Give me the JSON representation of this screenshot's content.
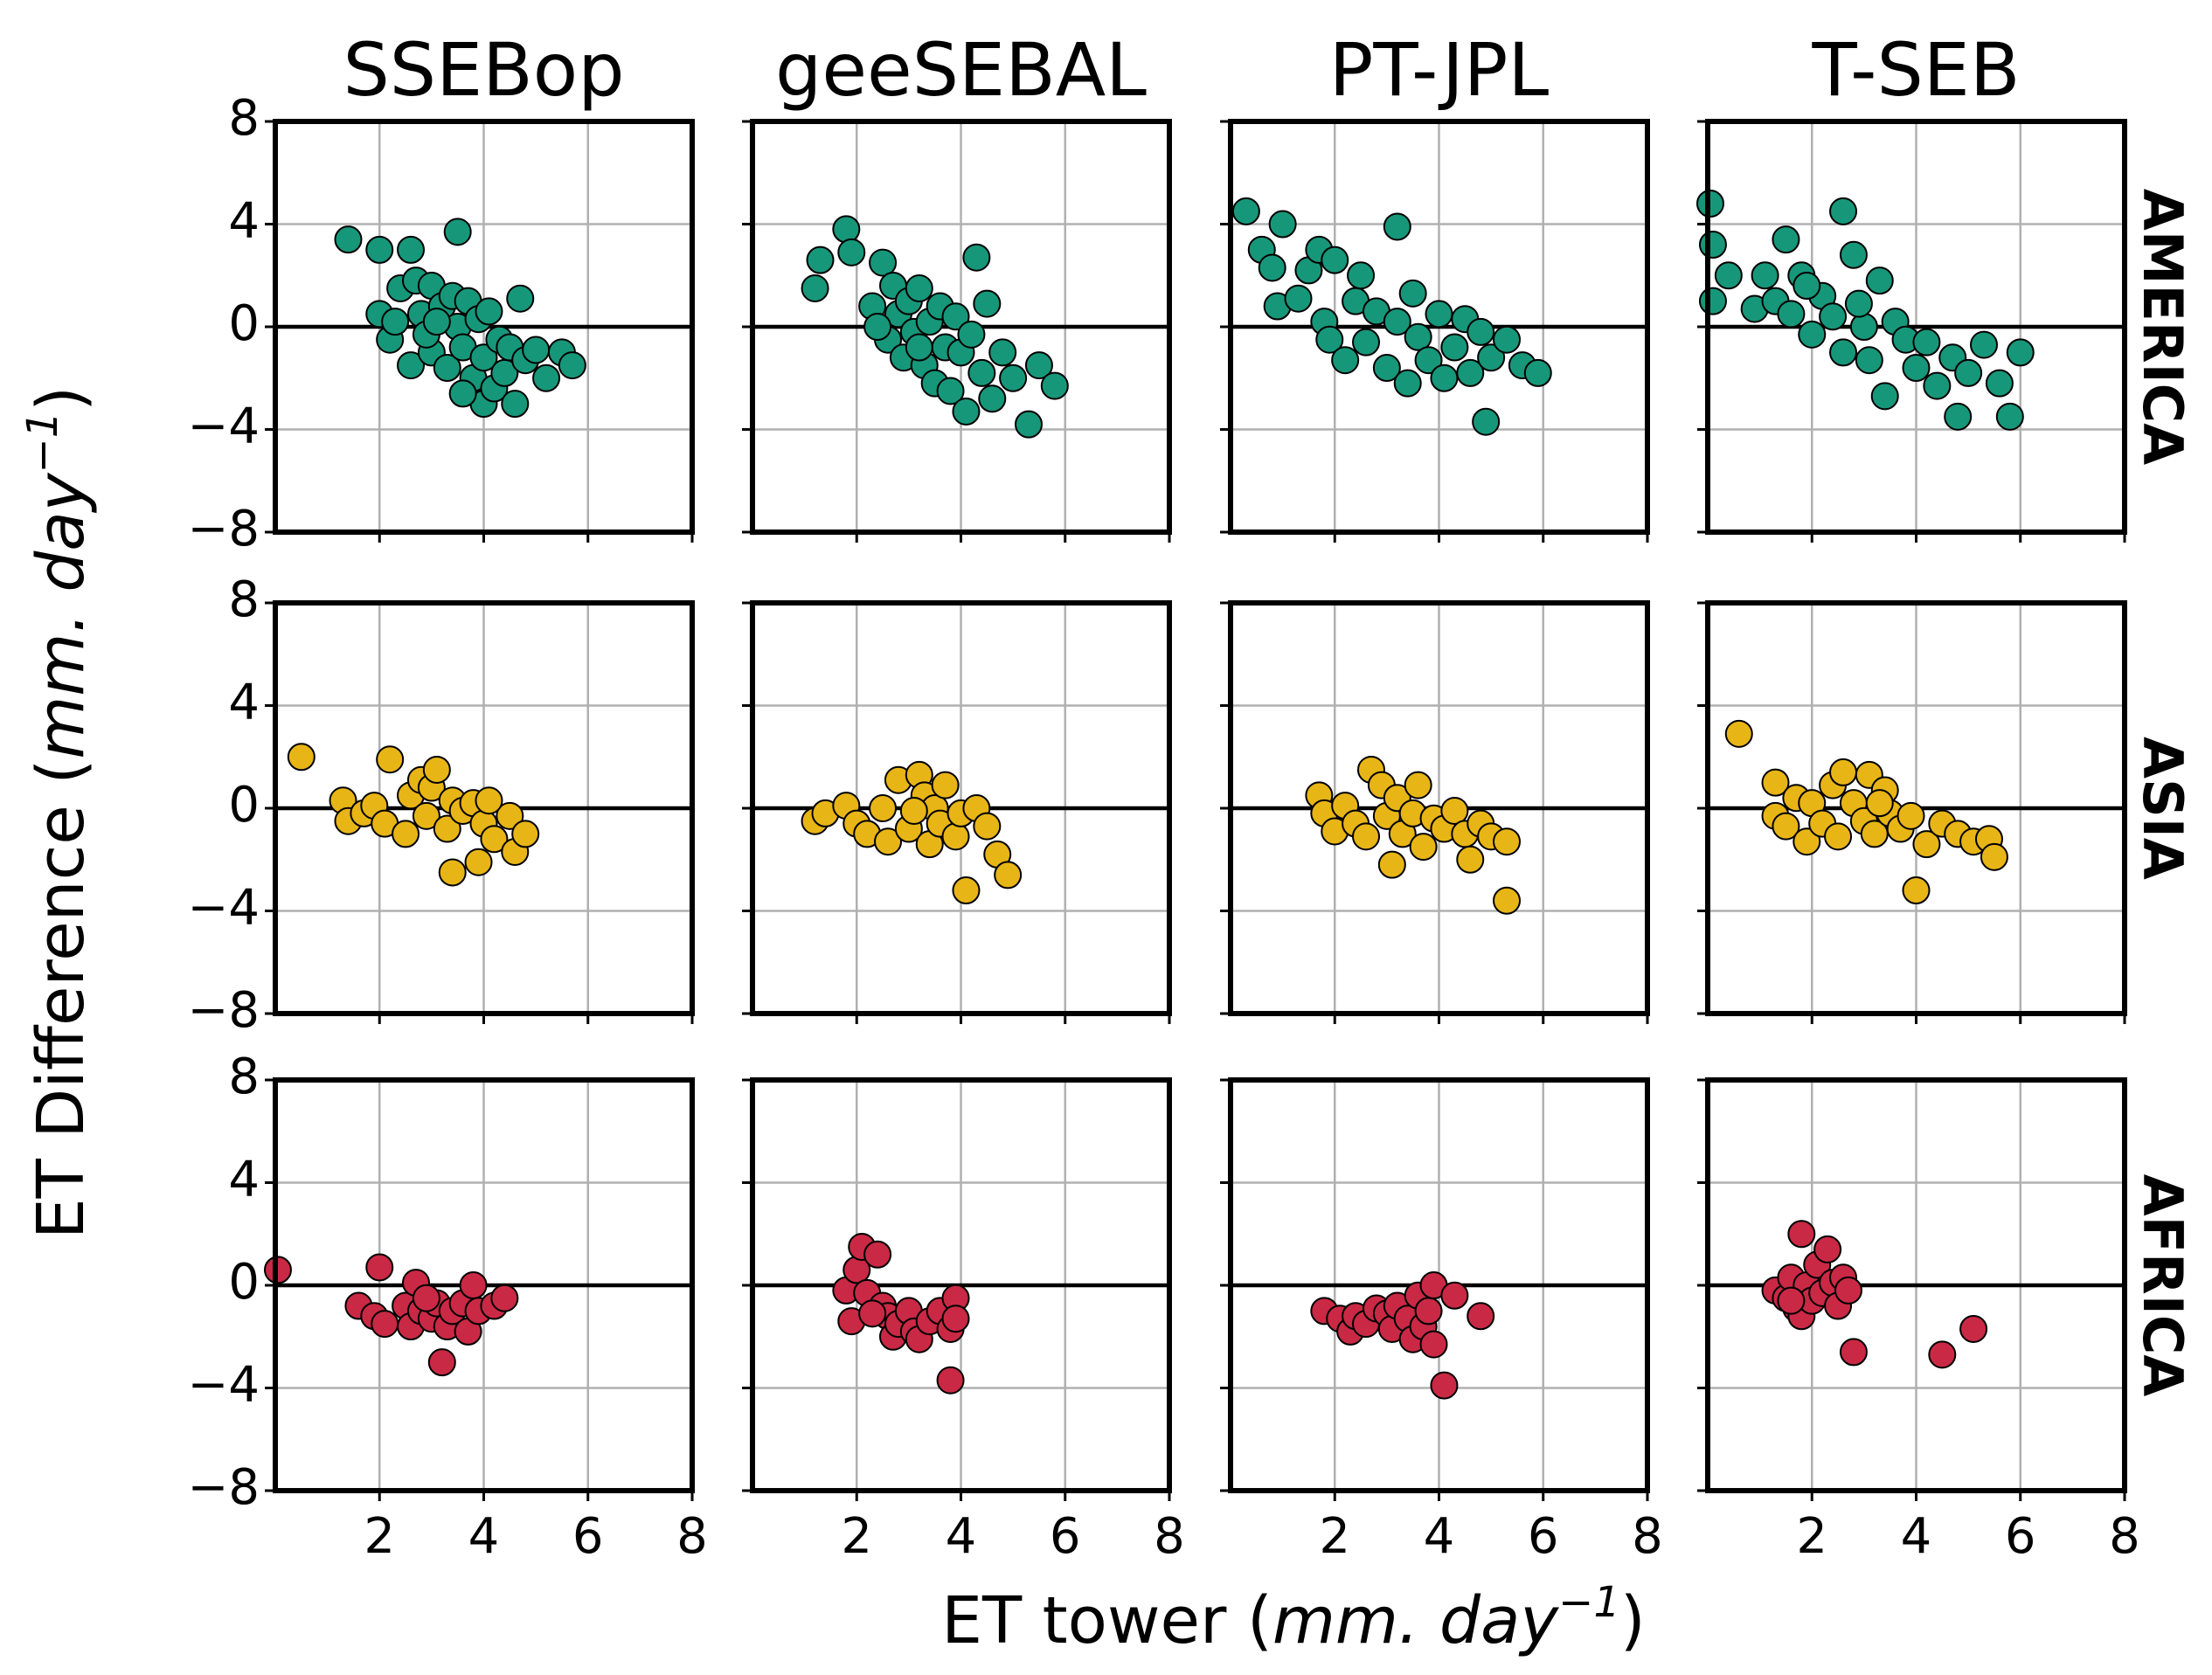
{
  "chart_data": {
    "type": "scatter",
    "x_label": {
      "prefix": "ET tower (",
      "unit": "mm. day",
      "exponent": "−1",
      "suffix": ")"
    },
    "y_label": {
      "prefix": "ET Difference (",
      "unit": "mm. day",
      "exponent": "−1",
      "suffix": ")"
    },
    "columns": [
      "SSEBop",
      "geeSEBAL",
      "PT-JPL",
      "T-SEB"
    ],
    "xlim": [
      0,
      8
    ],
    "ylim": [
      -8,
      8
    ],
    "xticks": [
      2,
      4,
      6,
      8
    ],
    "yticks": [
      {
        "value": -8,
        "label": "−8"
      },
      {
        "value": -4,
        "label": "−4"
      },
      0,
      4,
      8
    ],
    "grid": true,
    "reference_line": 0,
    "rows": [
      {
        "name": "AMERICA",
        "color": "#17977a",
        "panels": [
          {
            "x": [
              1.4,
              2.0,
              2.6,
              3.5,
              2.0,
              2.2,
              2.4,
              2.6,
              2.7,
              2.8,
              3.0,
              3.0,
              3.2,
              3.3,
              3.4,
              3.5,
              3.6,
              3.7,
              3.8,
              3.9,
              4.0,
              4.0,
              4.1,
              4.2,
              4.3,
              4.4,
              4.5,
              4.6,
              4.7,
              4.8,
              5.0,
              5.2,
              5.5,
              5.7,
              2.3,
              2.9,
              3.1,
              3.6
            ],
            "y": [
              3.4,
              3.0,
              3.0,
              3.7,
              0.5,
              -0.5,
              1.5,
              -1.5,
              1.8,
              0.5,
              1.6,
              -1.0,
              0.8,
              -1.6,
              1.2,
              0.0,
              -0.8,
              1.0,
              -2.0,
              0.3,
              -3.0,
              -1.2,
              0.6,
              -2.4,
              -0.5,
              -1.8,
              -0.8,
              -3.0,
              1.1,
              -1.3,
              -0.9,
              -2.0,
              -1.0,
              -1.5,
              0.2,
              -0.3,
              0.2,
              -2.6
            ]
          },
          {
            "x": [
              1.2,
              1.3,
              1.8,
              1.9,
              2.3,
              2.5,
              2.6,
              2.7,
              2.8,
              2.9,
              3.0,
              3.1,
              3.2,
              3.3,
              3.4,
              3.5,
              3.6,
              3.7,
              3.8,
              3.9,
              4.0,
              4.1,
              4.2,
              4.3,
              4.4,
              4.5,
              4.6,
              4.8,
              5.0,
              5.3,
              5.5,
              5.8,
              2.4,
              3.2
            ],
            "y": [
              1.5,
              2.6,
              3.8,
              2.9,
              0.8,
              2.5,
              -0.5,
              1.6,
              0.5,
              -1.2,
              1.0,
              -0.2,
              1.5,
              -1.5,
              0.2,
              -2.2,
              0.8,
              -0.8,
              -2.5,
              0.4,
              -1.0,
              -3.3,
              -0.3,
              2.7,
              -1.8,
              0.9,
              -2.8,
              -1.0,
              -2.0,
              -3.8,
              -1.5,
              -2.3,
              0.0,
              -0.8
            ]
          },
          {
            "x": [
              0.3,
              0.6,
              0.8,
              1.0,
              0.9,
              1.3,
              1.5,
              1.7,
              1.8,
              1.9,
              2.0,
              2.2,
              2.4,
              2.5,
              2.6,
              2.8,
              3.0,
              3.2,
              3.2,
              3.4,
              3.5,
              3.6,
              3.8,
              4.0,
              4.1,
              4.3,
              4.5,
              4.6,
              4.8,
              4.9,
              5.0,
              5.3,
              5.6,
              5.9
            ],
            "y": [
              4.5,
              3.0,
              2.3,
              4.0,
              0.8,
              1.1,
              2.2,
              3.0,
              0.2,
              -0.5,
              2.6,
              -1.3,
              1.0,
              2.0,
              -0.6,
              0.6,
              -1.6,
              3.9,
              0.2,
              -2.2,
              1.3,
              -0.4,
              -1.3,
              0.5,
              -2.0,
              -0.8,
              0.3,
              -1.8,
              -0.2,
              -3.7,
              -1.2,
              -0.5,
              -1.5,
              -1.8
            ]
          },
          {
            "x": [
              0.05,
              0.1,
              0.1,
              0.4,
              0.9,
              1.1,
              1.3,
              1.5,
              1.6,
              1.8,
              2.0,
              2.2,
              2.4,
              2.6,
              2.6,
              2.8,
              3.0,
              3.1,
              3.3,
              3.4,
              3.6,
              3.8,
              4.0,
              4.2,
              4.4,
              4.7,
              4.8,
              5.0,
              5.3,
              5.6,
              5.8,
              6.0,
              2.9,
              1.9
            ],
            "y": [
              4.8,
              3.2,
              1.0,
              2.0,
              0.7,
              2.0,
              1.0,
              3.4,
              0.5,
              2.0,
              -0.3,
              1.2,
              0.4,
              4.5,
              -1.0,
              2.8,
              0.0,
              -1.3,
              1.8,
              -2.7,
              0.2,
              -0.5,
              -1.6,
              -0.6,
              -2.3,
              -1.2,
              -3.5,
              -1.8,
              -0.7,
              -2.2,
              -3.5,
              -1.0,
              0.9,
              1.6
            ]
          }
        ]
      },
      {
        "name": "ASIA",
        "color": "#e8b516",
        "panels": [
          {
            "x": [
              0.5,
              1.3,
              1.4,
              1.7,
              1.9,
              2.1,
              2.2,
              2.5,
              2.6,
              2.8,
              2.9,
              3.0,
              3.1,
              3.3,
              3.4,
              3.4,
              3.6,
              3.8,
              3.9,
              4.0,
              4.2,
              4.5,
              4.6,
              4.8,
              4.1
            ],
            "y": [
              2.0,
              0.3,
              -0.5,
              -0.2,
              0.1,
              -0.6,
              1.9,
              -1.0,
              0.5,
              1.1,
              -0.3,
              0.8,
              1.5,
              -0.8,
              0.3,
              -2.5,
              -0.1,
              0.2,
              -2.1,
              -0.6,
              -1.2,
              -0.3,
              -1.7,
              -1.0,
              0.3
            ]
          },
          {
            "x": [
              1.2,
              1.4,
              1.8,
              2.0,
              2.2,
              2.5,
              2.6,
              2.8,
              3.0,
              3.2,
              3.3,
              3.4,
              3.5,
              3.6,
              3.7,
              3.9,
              4.0,
              4.1,
              4.3,
              4.5,
              4.7,
              4.9,
              3.1
            ],
            "y": [
              -0.5,
              -0.2,
              0.1,
              -0.6,
              -1.0,
              0.0,
              -1.3,
              1.1,
              -0.8,
              1.3,
              0.5,
              -1.4,
              0.0,
              -0.6,
              0.9,
              -1.1,
              -0.2,
              -3.2,
              0.0,
              -0.7,
              -1.8,
              -2.6,
              -0.1
            ]
          },
          {
            "x": [
              1.7,
              1.8,
              2.0,
              2.2,
              2.4,
              2.6,
              2.7,
              2.9,
              3.0,
              3.1,
              3.2,
              3.3,
              3.5,
              3.6,
              3.7,
              3.9,
              4.1,
              4.3,
              4.5,
              4.6,
              4.8,
              5.0,
              5.3,
              5.3
            ],
            "y": [
              0.5,
              -0.2,
              -0.9,
              0.1,
              -0.6,
              -1.1,
              1.5,
              0.9,
              -0.3,
              -2.2,
              0.4,
              -1.0,
              -0.2,
              0.9,
              -1.5,
              -0.4,
              -0.8,
              -0.1,
              -1.0,
              -2.0,
              -0.6,
              -1.1,
              -1.3,
              -3.6
            ]
          },
          {
            "x": [
              0.6,
              1.3,
              1.3,
              1.5,
              1.7,
              1.9,
              2.0,
              2.2,
              2.4,
              2.5,
              2.6,
              2.8,
              3.0,
              3.1,
              3.2,
              3.4,
              3.5,
              3.7,
              3.9,
              4.0,
              4.2,
              4.5,
              4.8,
              5.1,
              5.4,
              5.5,
              3.3
            ],
            "y": [
              2.9,
              1.0,
              -0.3,
              -0.7,
              0.4,
              -1.3,
              0.2,
              -0.6,
              0.9,
              -1.1,
              1.4,
              0.2,
              -0.5,
              1.3,
              -1.0,
              0.7,
              -0.2,
              -0.8,
              -0.3,
              -3.2,
              -1.4,
              -0.6,
              -1.0,
              -1.3,
              -1.2,
              -1.9,
              0.2
            ]
          }
        ]
      },
      {
        "name": "AFRICA",
        "color": "#c92944",
        "panels": [
          {
            "x": [
              0.05,
              1.6,
              1.9,
              2.0,
              2.1,
              2.5,
              2.6,
              2.7,
              2.8,
              3.0,
              3.1,
              3.2,
              3.3,
              3.4,
              3.6,
              3.7,
              3.8,
              3.9,
              4.2,
              4.4,
              2.9
            ],
            "y": [
              0.6,
              -0.8,
              -1.2,
              0.7,
              -1.5,
              -0.8,
              -1.6,
              0.1,
              -1.0,
              -1.3,
              -0.7,
              -3.0,
              -1.6,
              -1.0,
              -0.7,
              -1.8,
              0.0,
              -1.0,
              -0.8,
              -0.5,
              -0.5
            ]
          },
          {
            "x": [
              1.8,
              1.9,
              2.0,
              2.1,
              2.2,
              2.4,
              2.5,
              2.6,
              2.7,
              2.8,
              3.0,
              3.1,
              3.2,
              3.4,
              3.6,
              3.8,
              3.8,
              3.9,
              3.9,
              2.3
            ],
            "y": [
              -0.2,
              -1.4,
              0.6,
              1.5,
              -0.3,
              1.2,
              -0.8,
              -1.2,
              -2.0,
              -1.5,
              -1.0,
              -1.8,
              -2.1,
              -1.4,
              -1.0,
              -1.7,
              -3.7,
              -0.5,
              -1.3,
              -1.1
            ]
          },
          {
            "x": [
              1.8,
              2.1,
              2.3,
              2.4,
              2.6,
              2.8,
              3.0,
              3.1,
              3.2,
              3.4,
              3.5,
              3.6,
              3.7,
              3.8,
              3.9,
              3.9,
              4.1,
              4.3,
              4.8
            ],
            "y": [
              -1.0,
              -1.3,
              -1.8,
              -1.2,
              -1.5,
              -0.9,
              -1.1,
              -1.7,
              -0.8,
              -1.3,
              -2.1,
              -0.4,
              -1.6,
              -1.0,
              -2.3,
              0.0,
              -3.9,
              -0.4,
              -1.2
            ]
          },
          {
            "x": [
              1.3,
              1.5,
              1.6,
              1.7,
              1.8,
              1.8,
              1.9,
              2.0,
              2.1,
              2.2,
              2.3,
              2.4,
              2.5,
              2.6,
              2.7,
              2.8,
              4.5,
              5.1,
              1.6
            ],
            "y": [
              -0.2,
              -0.5,
              0.3,
              -0.9,
              2.0,
              -1.2,
              0.0,
              -0.6,
              0.8,
              -0.3,
              1.4,
              0.1,
              -0.8,
              0.3,
              -0.2,
              -2.6,
              -2.7,
              -1.7,
              -0.6
            ]
          }
        ]
      }
    ]
  }
}
